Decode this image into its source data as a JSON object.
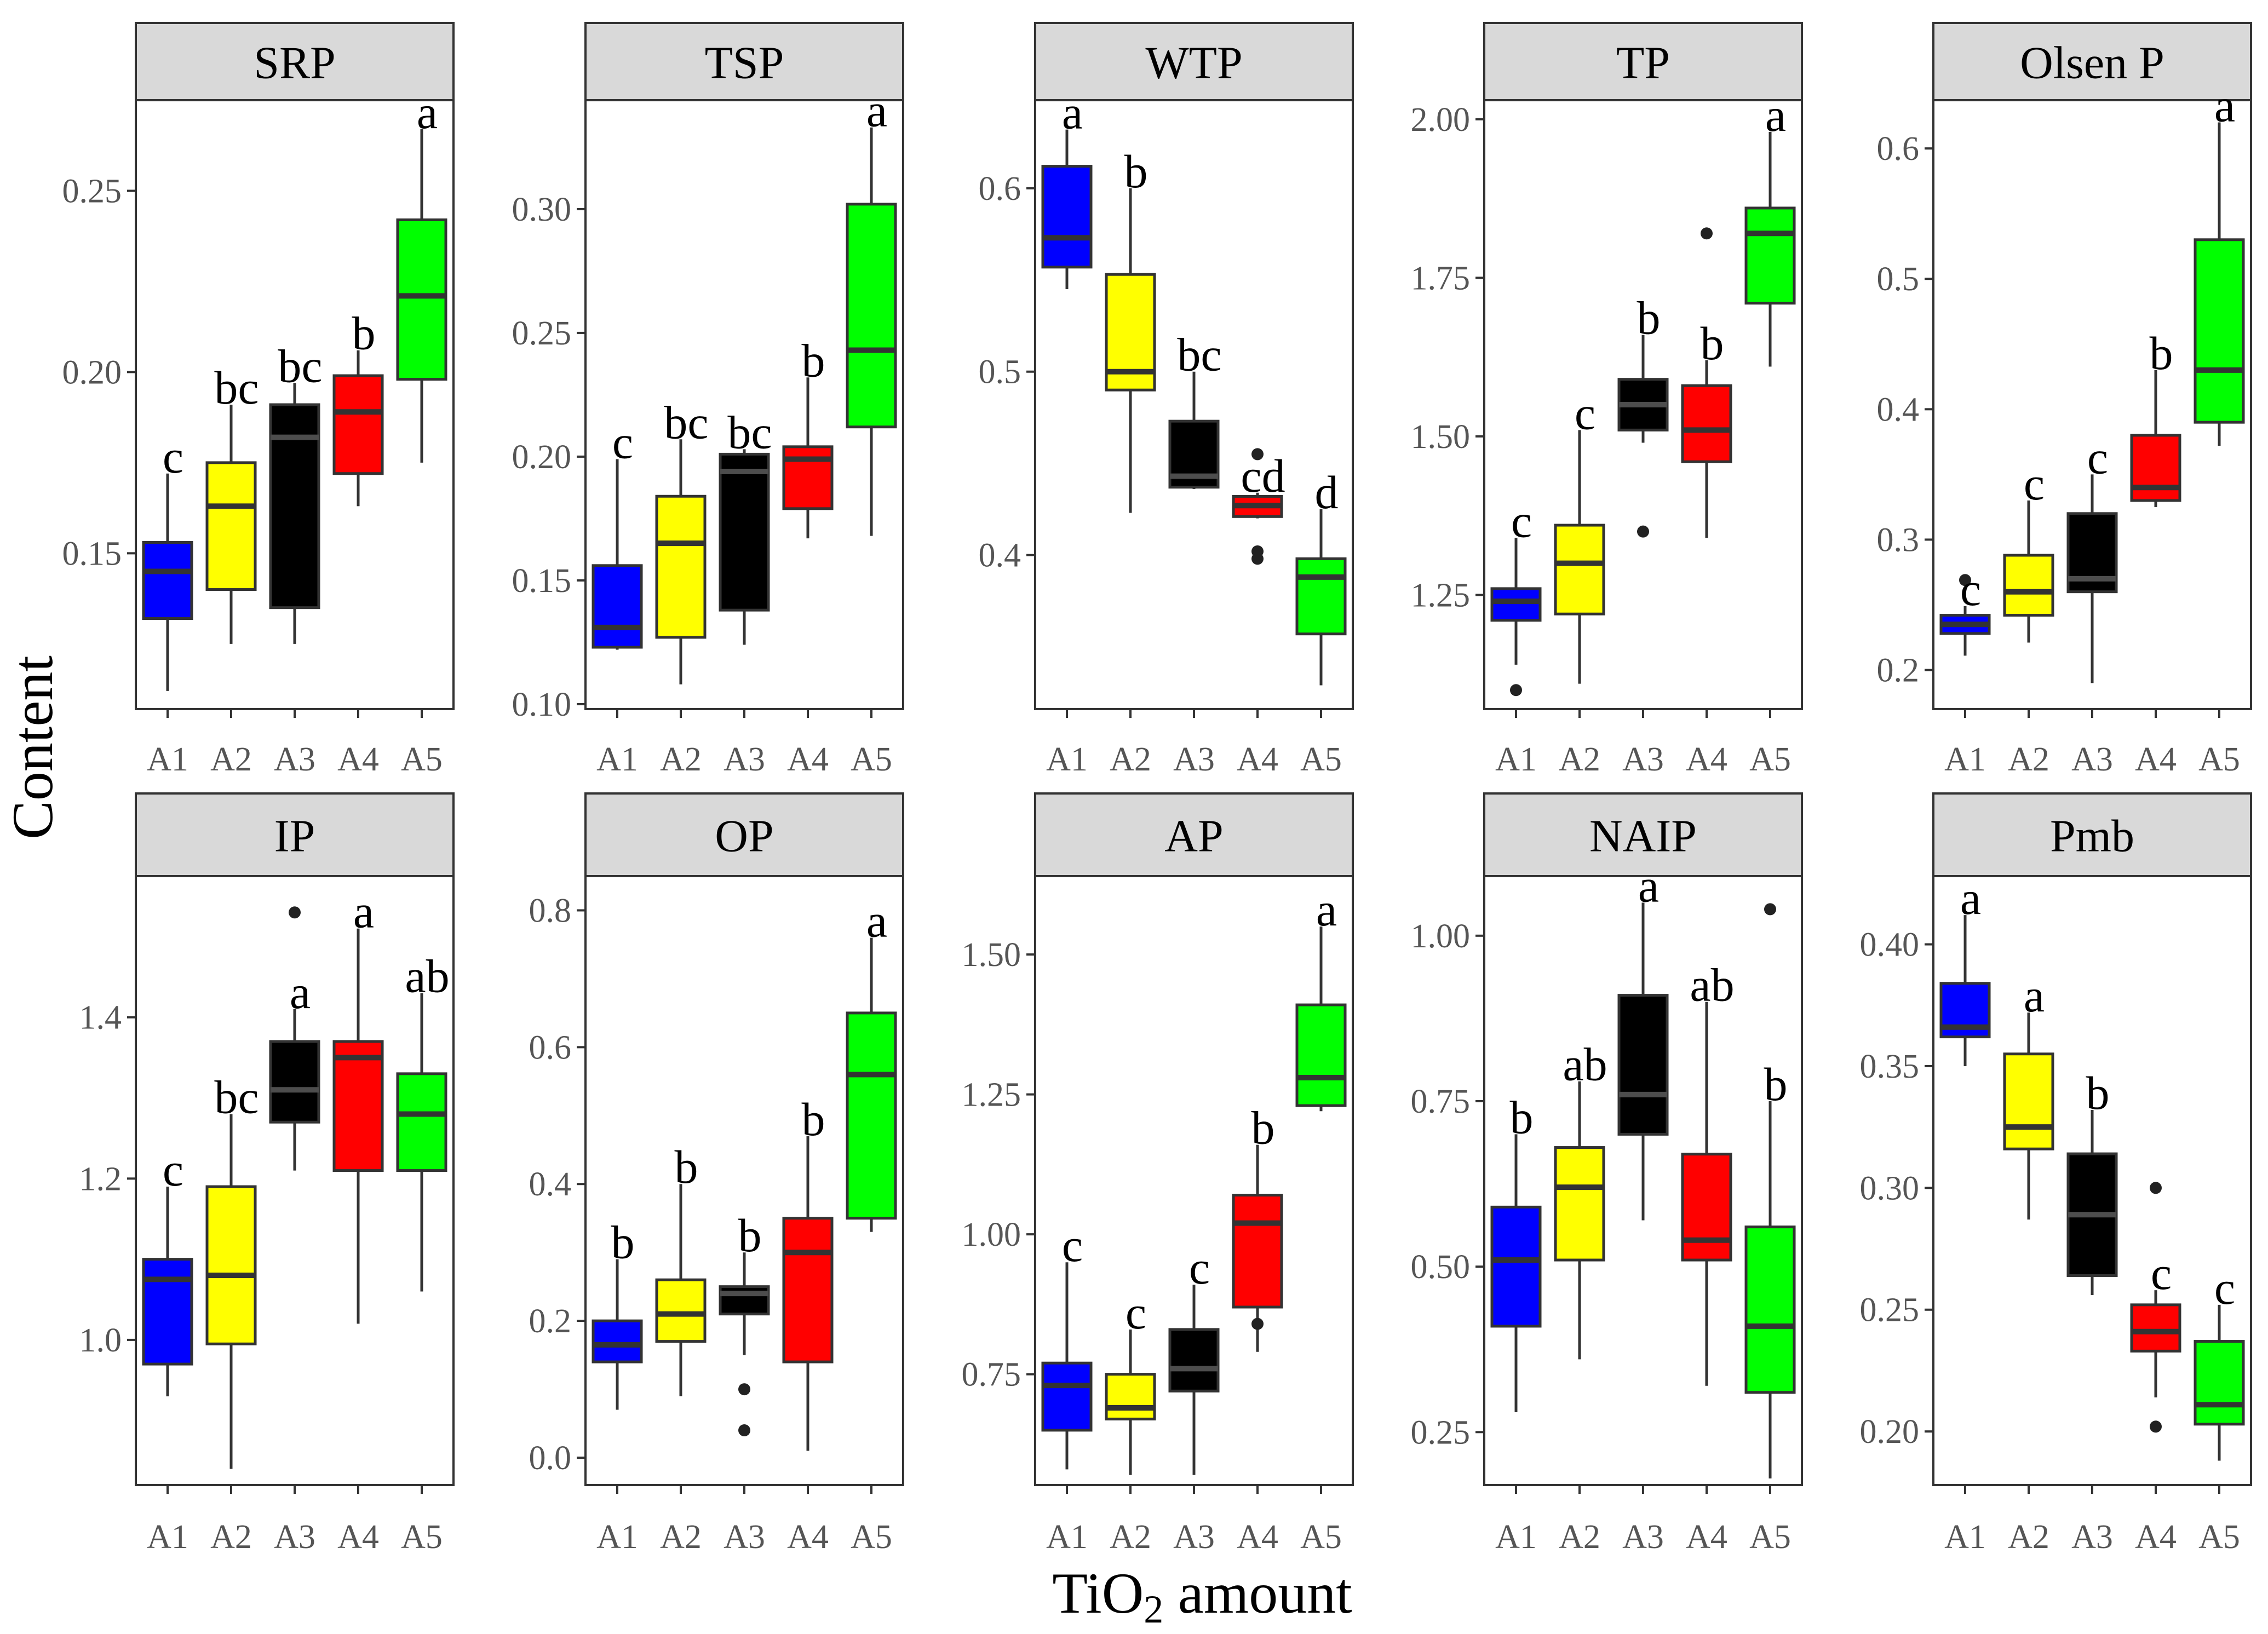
{
  "figure": {
    "ylabel": "Content",
    "xlabel_main": "TiO",
    "xlabel_sub": "2",
    "xlabel_rest": " amount"
  },
  "colors": {
    "A1": "#0000ff",
    "A2": "#ffff00",
    "A3": "#000000",
    "A4": "#ff0000",
    "A5": "#00ff00",
    "median_dark": "#333333",
    "median_on_black": "#4d4d4d",
    "strip_bg": "#d9d9d9"
  },
  "chart_data": [
    {
      "type": "box",
      "title": "SRP",
      "categories": [
        "A1",
        "A2",
        "A3",
        "A4",
        "A5"
      ],
      "ylim": [
        0.107,
        0.275
      ],
      "yticks": [
        0.15,
        0.2,
        0.25
      ],
      "ytick_labels": [
        "0.15",
        "0.20",
        "0.25"
      ],
      "boxes": [
        {
          "cat": "A1",
          "whislo": 0.112,
          "q1": 0.132,
          "med": 0.145,
          "q3": 0.153,
          "whishi": 0.172,
          "fliers": [],
          "letter": "c"
        },
        {
          "cat": "A2",
          "whislo": 0.125,
          "q1": 0.14,
          "med": 0.163,
          "q3": 0.175,
          "whishi": 0.191,
          "fliers": [],
          "letter": "bc"
        },
        {
          "cat": "A3",
          "whislo": 0.125,
          "q1": 0.135,
          "med": 0.182,
          "q3": 0.191,
          "whishi": 0.197,
          "fliers": [],
          "letter": "bc"
        },
        {
          "cat": "A4",
          "whislo": 0.163,
          "q1": 0.172,
          "med": 0.189,
          "q3": 0.199,
          "whishi": 0.206,
          "fliers": [],
          "letter": "b"
        },
        {
          "cat": "A5",
          "whislo": 0.175,
          "q1": 0.198,
          "med": 0.221,
          "q3": 0.242,
          "whishi": 0.267,
          "fliers": [],
          "letter": "a"
        }
      ]
    },
    {
      "type": "box",
      "title": "TSP",
      "categories": [
        "A1",
        "A2",
        "A3",
        "A4",
        "A5"
      ],
      "ylim": [
        0.098,
        0.344
      ],
      "yticks": [
        0.1,
        0.15,
        0.2,
        0.25,
        0.3
      ],
      "ytick_labels": [
        "0.10",
        "0.15",
        "0.20",
        "0.25",
        "0.30"
      ],
      "boxes": [
        {
          "cat": "A1",
          "whislo": 0.122,
          "q1": 0.123,
          "med": 0.131,
          "q3": 0.156,
          "whishi": 0.199,
          "fliers": [],
          "letter": "c"
        },
        {
          "cat": "A2",
          "whislo": 0.108,
          "q1": 0.127,
          "med": 0.165,
          "q3": 0.184,
          "whishi": 0.207,
          "fliers": [],
          "letter": "bc"
        },
        {
          "cat": "A3",
          "whislo": 0.124,
          "q1": 0.138,
          "med": 0.194,
          "q3": 0.201,
          "whishi": 0.203,
          "fliers": [],
          "letter": "bc"
        },
        {
          "cat": "A4",
          "whislo": 0.167,
          "q1": 0.179,
          "med": 0.199,
          "q3": 0.204,
          "whishi": 0.232,
          "fliers": [],
          "letter": "b"
        },
        {
          "cat": "A5",
          "whislo": 0.168,
          "q1": 0.212,
          "med": 0.243,
          "q3": 0.302,
          "whishi": 0.333,
          "fliers": [],
          "letter": "a"
        }
      ]
    },
    {
      "type": "box",
      "title": "WTP",
      "categories": [
        "A1",
        "A2",
        "A3",
        "A4",
        "A5"
      ],
      "ylim": [
        0.316,
        0.648
      ],
      "yticks": [
        0.4,
        0.5,
        0.6
      ],
      "ytick_labels": [
        "0.4",
        "0.5",
        "0.6"
      ],
      "boxes": [
        {
          "cat": "A1",
          "whislo": 0.545,
          "q1": 0.557,
          "med": 0.573,
          "q3": 0.612,
          "whishi": 0.632,
          "fliers": [],
          "letter": "a"
        },
        {
          "cat": "A2",
          "whislo": 0.423,
          "q1": 0.49,
          "med": 0.5,
          "q3": 0.553,
          "whishi": 0.6,
          "fliers": [],
          "letter": "b"
        },
        {
          "cat": "A3",
          "whislo": 0.436,
          "q1": 0.437,
          "med": 0.443,
          "q3": 0.473,
          "whishi": 0.5,
          "fliers": [],
          "letter": "bc"
        },
        {
          "cat": "A4",
          "whislo": 0.42,
          "q1": 0.421,
          "med": 0.427,
          "q3": 0.432,
          "whishi": 0.434,
          "fliers": [
            0.455,
            0.402,
            0.398
          ],
          "letter": "cd"
        },
        {
          "cat": "A5",
          "whislo": 0.329,
          "q1": 0.357,
          "med": 0.388,
          "q3": 0.398,
          "whishi": 0.425,
          "fliers": [],
          "letter": "d"
        }
      ]
    },
    {
      "type": "box",
      "title": "TP",
      "categories": [
        "A1",
        "A2",
        "A3",
        "A4",
        "A5"
      ],
      "ylim": [
        1.07,
        2.03
      ],
      "yticks": [
        1.25,
        1.5,
        1.75,
        2.0
      ],
      "ytick_labels": [
        "1.25",
        "1.50",
        "1.75",
        "2.00"
      ],
      "boxes": [
        {
          "cat": "A1",
          "whislo": 1.14,
          "q1": 1.21,
          "med": 1.24,
          "q3": 1.26,
          "whishi": 1.34,
          "fliers": [
            1.1
          ],
          "letter": "c"
        },
        {
          "cat": "A2",
          "whislo": 1.11,
          "q1": 1.22,
          "med": 1.3,
          "q3": 1.36,
          "whishi": 1.51,
          "fliers": [],
          "letter": "c"
        },
        {
          "cat": "A3",
          "whislo": 1.49,
          "q1": 1.51,
          "med": 1.55,
          "q3": 1.59,
          "whishi": 1.66,
          "fliers": [
            1.35
          ],
          "letter": "b"
        },
        {
          "cat": "A4",
          "whislo": 1.34,
          "q1": 1.46,
          "med": 1.51,
          "q3": 1.58,
          "whishi": 1.62,
          "fliers": [
            1.82
          ],
          "letter": "b"
        },
        {
          "cat": "A5",
          "whislo": 1.61,
          "q1": 1.71,
          "med": 1.82,
          "q3": 1.86,
          "whishi": 1.98,
          "fliers": [],
          "letter": "a"
        }
      ]
    },
    {
      "type": "box",
      "title": "Olsen P",
      "categories": [
        "A1",
        "A2",
        "A3",
        "A4",
        "A5"
      ],
      "ylim": [
        0.17,
        0.637
      ],
      "yticks": [
        0.2,
        0.3,
        0.4,
        0.5,
        0.6
      ],
      "ytick_labels": [
        "0.2",
        "0.3",
        "0.4",
        "0.5",
        "0.6"
      ],
      "boxes": [
        {
          "cat": "A1",
          "whislo": 0.211,
          "q1": 0.228,
          "med": 0.235,
          "q3": 0.242,
          "whishi": 0.249,
          "fliers": [
            0.269
          ],
          "letter": "c"
        },
        {
          "cat": "A2",
          "whislo": 0.221,
          "q1": 0.242,
          "med": 0.26,
          "q3": 0.288,
          "whishi": 0.33,
          "fliers": [],
          "letter": "c"
        },
        {
          "cat": "A3",
          "whislo": 0.19,
          "q1": 0.26,
          "med": 0.27,
          "q3": 0.32,
          "whishi": 0.35,
          "fliers": [],
          "letter": "c"
        },
        {
          "cat": "A4",
          "whislo": 0.325,
          "q1": 0.33,
          "med": 0.34,
          "q3": 0.38,
          "whishi": 0.43,
          "fliers": [],
          "letter": "b"
        },
        {
          "cat": "A5",
          "whislo": 0.372,
          "q1": 0.39,
          "med": 0.43,
          "q3": 0.53,
          "whishi": 0.62,
          "fliers": [],
          "letter": "a"
        }
      ]
    },
    {
      "type": "box",
      "title": "IP",
      "categories": [
        "A1",
        "A2",
        "A3",
        "A4",
        "A5"
      ],
      "ylim": [
        0.82,
        1.575
      ],
      "yticks": [
        1.0,
        1.2,
        1.4
      ],
      "ytick_labels": [
        "1.0",
        "1.2",
        "1.4"
      ],
      "boxes": [
        {
          "cat": "A1",
          "whislo": 0.93,
          "q1": 0.97,
          "med": 1.075,
          "q3": 1.1,
          "whishi": 1.19,
          "fliers": [],
          "letter": "c"
        },
        {
          "cat": "A2",
          "whislo": 0.84,
          "q1": 0.995,
          "med": 1.08,
          "q3": 1.19,
          "whishi": 1.28,
          "fliers": [],
          "letter": "bc"
        },
        {
          "cat": "A3",
          "whislo": 1.21,
          "q1": 1.27,
          "med": 1.31,
          "q3": 1.37,
          "whishi": 1.41,
          "fliers": [
            1.53
          ],
          "letter": "a"
        },
        {
          "cat": "A4",
          "whislo": 1.02,
          "q1": 1.21,
          "med": 1.35,
          "q3": 1.37,
          "whishi": 1.51,
          "fliers": [],
          "letter": "a"
        },
        {
          "cat": "A5",
          "whislo": 1.06,
          "q1": 1.21,
          "med": 1.28,
          "q3": 1.33,
          "whishi": 1.43,
          "fliers": [],
          "letter": "ab"
        }
      ]
    },
    {
      "type": "box",
      "title": "OP",
      "categories": [
        "A1",
        "A2",
        "A3",
        "A4",
        "A5"
      ],
      "ylim": [
        -0.04,
        0.85
      ],
      "yticks": [
        0.0,
        0.2,
        0.4,
        0.6,
        0.8
      ],
      "ytick_labels": [
        "0.0",
        "0.2",
        "0.4",
        "0.6",
        "0.8"
      ],
      "boxes": [
        {
          "cat": "A1",
          "whislo": 0.07,
          "q1": 0.14,
          "med": 0.165,
          "q3": 0.2,
          "whishi": 0.29,
          "fliers": [],
          "letter": "b"
        },
        {
          "cat": "A2",
          "whislo": 0.09,
          "q1": 0.17,
          "med": 0.21,
          "q3": 0.26,
          "whishi": 0.4,
          "fliers": [],
          "letter": "b"
        },
        {
          "cat": "A3",
          "whislo": 0.15,
          "q1": 0.21,
          "med": 0.24,
          "q3": 0.25,
          "whishi": 0.3,
          "fliers": [
            0.1,
            0.04
          ],
          "letter": "b"
        },
        {
          "cat": "A4",
          "whislo": 0.01,
          "q1": 0.14,
          "med": 0.3,
          "q3": 0.35,
          "whishi": 0.47,
          "fliers": [],
          "letter": "b"
        },
        {
          "cat": "A5",
          "whislo": 0.33,
          "q1": 0.35,
          "med": 0.56,
          "q3": 0.65,
          "whishi": 0.76,
          "fliers": [],
          "letter": "a"
        }
      ]
    },
    {
      "type": "box",
      "title": "AP",
      "categories": [
        "A1",
        "A2",
        "A3",
        "A4",
        "A5"
      ],
      "ylim": [
        0.552,
        1.64
      ],
      "yticks": [
        0.75,
        1.0,
        1.25,
        1.5
      ],
      "ytick_labels": [
        "0.75",
        "1.00",
        "1.25",
        "1.50"
      ],
      "boxes": [
        {
          "cat": "A1",
          "whislo": 0.58,
          "q1": 0.65,
          "med": 0.73,
          "q3": 0.77,
          "whishi": 0.95,
          "fliers": [],
          "letter": "c"
        },
        {
          "cat": "A2",
          "whislo": 0.57,
          "q1": 0.67,
          "med": 0.69,
          "q3": 0.75,
          "whishi": 0.83,
          "fliers": [],
          "letter": "c"
        },
        {
          "cat": "A3",
          "whislo": 0.57,
          "q1": 0.72,
          "med": 0.76,
          "q3": 0.83,
          "whishi": 0.91,
          "fliers": [],
          "letter": "c"
        },
        {
          "cat": "A4",
          "whislo": 0.79,
          "q1": 0.87,
          "med": 1.02,
          "q3": 1.07,
          "whishi": 1.16,
          "fliers": [
            0.84
          ],
          "letter": "b"
        },
        {
          "cat": "A5",
          "whislo": 1.22,
          "q1": 1.23,
          "med": 1.28,
          "q3": 1.41,
          "whishi": 1.55,
          "fliers": [],
          "letter": "a"
        }
      ]
    },
    {
      "type": "box",
      "title": "NAIP",
      "categories": [
        "A1",
        "A2",
        "A3",
        "A4",
        "A5"
      ],
      "ylim": [
        0.17,
        1.09
      ],
      "yticks": [
        0.25,
        0.5,
        0.75,
        1.0
      ],
      "ytick_labels": [
        "0.25",
        "0.50",
        "0.75",
        "1.00"
      ],
      "boxes": [
        {
          "cat": "A1",
          "whislo": 0.28,
          "q1": 0.41,
          "med": 0.51,
          "q3": 0.59,
          "whishi": 0.7,
          "fliers": [],
          "letter": "b"
        },
        {
          "cat": "A2",
          "whislo": 0.36,
          "q1": 0.51,
          "med": 0.62,
          "q3": 0.68,
          "whishi": 0.78,
          "fliers": [],
          "letter": "ab"
        },
        {
          "cat": "A3",
          "whislo": 0.57,
          "q1": 0.7,
          "med": 0.76,
          "q3": 0.91,
          "whishi": 1.05,
          "fliers": [],
          "letter": "a"
        },
        {
          "cat": "A4",
          "whislo": 0.32,
          "q1": 0.51,
          "med": 0.54,
          "q3": 0.67,
          "whishi": 0.9,
          "fliers": [],
          "letter": "ab"
        },
        {
          "cat": "A5",
          "whislo": 0.18,
          "q1": 0.31,
          "med": 0.41,
          "q3": 0.56,
          "whishi": 0.75,
          "fliers": [
            1.04
          ],
          "letter": "b"
        }
      ]
    },
    {
      "type": "box",
      "title": "Pmb",
      "categories": [
        "A1",
        "A2",
        "A3",
        "A4",
        "A5"
      ],
      "ylim": [
        0.178,
        0.428
      ],
      "yticks": [
        0.2,
        0.25,
        0.3,
        0.35,
        0.4
      ],
      "ytick_labels": [
        "0.20",
        "0.25",
        "0.30",
        "0.35",
        "0.40"
      ],
      "boxes": [
        {
          "cat": "A1",
          "whislo": 0.35,
          "q1": 0.362,
          "med": 0.366,
          "q3": 0.384,
          "whishi": 0.412,
          "fliers": [],
          "letter": "a"
        },
        {
          "cat": "A2",
          "whislo": 0.287,
          "q1": 0.316,
          "med": 0.325,
          "q3": 0.355,
          "whishi": 0.372,
          "fliers": [],
          "letter": "a"
        },
        {
          "cat": "A3",
          "whislo": 0.256,
          "q1": 0.264,
          "med": 0.289,
          "q3": 0.314,
          "whishi": 0.332,
          "fliers": [],
          "letter": "b"
        },
        {
          "cat": "A4",
          "whislo": 0.214,
          "q1": 0.233,
          "med": 0.241,
          "q3": 0.252,
          "whishi": 0.258,
          "fliers": [
            0.3,
            0.202
          ],
          "letter": "c"
        },
        {
          "cat": "A5",
          "whislo": 0.188,
          "q1": 0.203,
          "med": 0.211,
          "q3": 0.237,
          "whishi": 0.252,
          "fliers": [],
          "letter": "c"
        }
      ]
    }
  ]
}
